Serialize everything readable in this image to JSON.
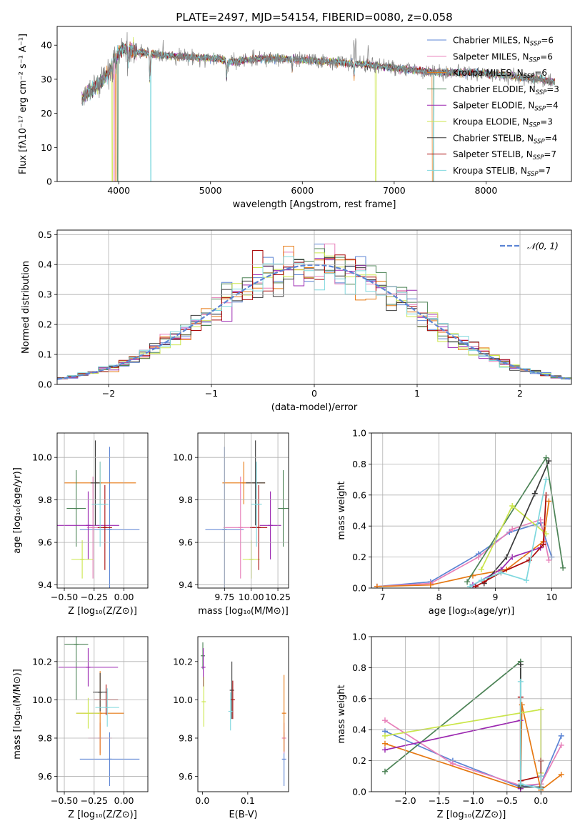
{
  "colors": {
    "Chabrier MILES": "#5b84d4",
    "Salpeter MILES": "#e77fb9",
    "Kroupa MILES": "#e67812",
    "Chabrier ELODIE": "#4c8356",
    "Salpeter ELODIE": "#9b27b0",
    "Kroupa ELODIE": "#cbe64a",
    "Chabrier STELIB": "#3a3a3a",
    "Salpeter STELIB": "#aa0a0a",
    "Kroupa STELIB": "#7fd8de",
    "model": "#808080"
  },
  "chart_data": [
    {
      "id": "spectrum",
      "type": "line",
      "title": "PLATE=2497, MJD=54154, FIBERID=0080, z=0.058",
      "xlabel": "wavelength [Angstrom, rest frame]",
      "ylabel": "Flux [fλ10⁻¹⁷ erg cm⁻² s⁻¹ A⁻¹]",
      "xlim": [
        3330,
        8930
      ],
      "ylim": [
        0,
        45.5
      ],
      "xticks": [
        "4000",
        "5000",
        "6000",
        "7000",
        "8000"
      ],
      "yticks": [
        "0",
        "10",
        "20",
        "30",
        "40"
      ],
      "grid": false,
      "legend_position": "top-right",
      "continuum": [
        [
          3600,
          24
        ],
        [
          3700,
          27
        ],
        [
          3800,
          29
        ],
        [
          3900,
          32
        ],
        [
          3960,
          37
        ],
        [
          4050,
          39
        ],
        [
          4200,
          38
        ],
        [
          4500,
          37
        ],
        [
          4800,
          36.5
        ],
        [
          5100,
          36
        ],
        [
          5200,
          35
        ],
        [
          5500,
          36
        ],
        [
          5800,
          36
        ],
        [
          6100,
          35.5
        ],
        [
          6400,
          35
        ],
        [
          6600,
          34.5
        ],
        [
          6800,
          34
        ],
        [
          7100,
          33
        ],
        [
          7300,
          32.5
        ],
        [
          7500,
          32
        ],
        [
          7800,
          32
        ],
        [
          8100,
          31.5
        ],
        [
          8400,
          30.5
        ],
        [
          8600,
          30
        ],
        [
          8800,
          29
        ]
      ],
      "observed_range": [
        3600,
        8750
      ],
      "absorption_features": [
        [
          3934,
          4
        ],
        [
          3969,
          4
        ],
        [
          4102,
          4
        ],
        [
          4340,
          8
        ],
        [
          5175,
          5
        ],
        [
          5890,
          3
        ],
        [
          6563,
          4
        ]
      ],
      "emission_features": [
        [
          6563,
          12
        ],
        [
          6583,
          8
        ],
        [
          6717,
          6
        ]
      ],
      "series": [
        {
          "name": "Chabrier MILES",
          "nssp": "6"
        },
        {
          "name": "Salpeter MILES",
          "nssp": "6"
        },
        {
          "name": "Kroupa MILES",
          "nssp": "6"
        },
        {
          "name": "Chabrier ELODIE",
          "nssp": "3"
        },
        {
          "name": "Salpeter ELODIE",
          "nssp": "4"
        },
        {
          "name": "Kroupa ELODIE",
          "nssp": "3"
        },
        {
          "name": "Chabrier STELIB",
          "nssp": "4"
        },
        {
          "name": "Salpeter STELIB",
          "nssp": "7"
        },
        {
          "name": "Kroupa STELIB",
          "nssp": "7"
        }
      ]
    },
    {
      "id": "residuals",
      "type": "line",
      "xlabel": "(data-model)/error",
      "ylabel": "Normed distribution",
      "xlim": [
        -2.5,
        2.5
      ],
      "ylim": [
        0,
        0.515
      ],
      "xticks": [
        -2,
        -1,
        0,
        1,
        2
      ],
      "yticks": [
        0.0,
        0.1,
        0.2,
        0.3,
        0.4,
        0.5
      ],
      "grid": true,
      "reference_curve": "N(0,1)",
      "legend_label": "𝒩(0, 1)",
      "histogram_bin_width": 0.1
    },
    {
      "id": "age-vs-Z",
      "type": "scatter",
      "xlabel": "Z [log₁₀(Z/Z⊙)]",
      "ylabel": "age  [log₁₀(age/yr)]",
      "xlim": [
        -0.56,
        0.2
      ],
      "ylim": [
        9.385,
        10.115
      ],
      "xticks": [
        -0.5,
        -0.25,
        0.0
      ],
      "yticks": [
        9.4,
        9.6,
        9.8,
        10.0
      ],
      "grid": true,
      "points": [
        {
          "name": "Chabrier MILES",
          "x": -0.12,
          "y": 9.66,
          "xerr": 0.25,
          "yerr": 0.39
        },
        {
          "name": "Salpeter MILES",
          "x": -0.26,
          "y": 9.67,
          "xerr": 0.05,
          "yerr": 0.24
        },
        {
          "name": "Kroupa MILES",
          "x": -0.2,
          "y": 9.88,
          "xerr": 0.3,
          "yerr": 0.1
        },
        {
          "name": "Chabrier ELODIE",
          "x": -0.4,
          "y": 9.76,
          "xerr": 0.08,
          "yerr": 0.18
        },
        {
          "name": "Salpeter ELODIE",
          "x": -0.3,
          "y": 9.68,
          "xerr": 0.26,
          "yerr": 0.16
        },
        {
          "name": "Kroupa ELODIE",
          "x": -0.35,
          "y": 9.52,
          "xerr": 0.09,
          "yerr": 0.09
        },
        {
          "name": "Chabrier STELIB",
          "x": -0.24,
          "y": 9.88,
          "xerr": 0.04,
          "yerr": 0.2
        },
        {
          "name": "Salpeter STELIB",
          "x": -0.16,
          "y": 9.67,
          "xerr": 0.06,
          "yerr": 0.2
        },
        {
          "name": "Kroupa STELIB",
          "x": -0.2,
          "y": 9.78,
          "xerr": 0.07,
          "yerr": 0.2
        }
      ]
    },
    {
      "id": "age-vs-mass",
      "type": "scatter",
      "xlabel": "mass [log₁₀(M/M⊙)]",
      "ylabel": "",
      "xlim": [
        9.5,
        10.35
      ],
      "ylim": [
        9.385,
        10.115
      ],
      "xticks": [
        "9.75",
        "10.00",
        "10.25"
      ],
      "yticks": [
        9.4,
        9.6,
        9.8,
        10.0
      ],
      "grid": true,
      "points": [
        {
          "name": "Chabrier MILES",
          "x": 9.75,
          "y": 9.66,
          "xerr": 0.18,
          "yerr": 0.39
        },
        {
          "name": "Salpeter MILES",
          "x": 9.9,
          "y": 9.67,
          "xerr": 0.16,
          "yerr": 0.24
        },
        {
          "name": "Kroupa MILES",
          "x": 9.93,
          "y": 9.88,
          "xerr": 0.2,
          "yerr": 0.1
        },
        {
          "name": "Chabrier ELODIE",
          "x": 10.3,
          "y": 9.76,
          "xerr": 0.05,
          "yerr": 0.18
        },
        {
          "name": "Salpeter ELODIE",
          "x": 10.18,
          "y": 9.68,
          "xerr": 0.1,
          "yerr": 0.16
        },
        {
          "name": "Kroupa ELODIE",
          "x": 10.0,
          "y": 9.52,
          "xerr": 0.08,
          "yerr": 0.09
        },
        {
          "name": "Chabrier STELIB",
          "x": 10.04,
          "y": 9.88,
          "xerr": 0.09,
          "yerr": 0.2
        },
        {
          "name": "Salpeter STELIB",
          "x": 10.07,
          "y": 9.67,
          "xerr": 0.08,
          "yerr": 0.2
        },
        {
          "name": "Kroupa STELIB",
          "x": 10.05,
          "y": 9.78,
          "xerr": 0.05,
          "yerr": 0.2
        }
      ]
    },
    {
      "id": "massweight-vs-age",
      "type": "line",
      "xlabel": "age  [log₁₀(age/yr)]",
      "ylabel": "mass weight",
      "xlim": [
        6.8,
        10.35
      ],
      "ylim": [
        0,
        1.0
      ],
      "xticks": [
        7,
        8,
        9,
        10
      ],
      "yticks": [
        0.0,
        0.2,
        0.4,
        0.6,
        0.8,
        1.0
      ],
      "grid": true,
      "series": [
        {
          "name": "Chabrier MILES",
          "x": [
            6.9,
            7.85,
            8.7,
            9.25,
            9.8,
            10.0
          ],
          "y": [
            0.01,
            0.04,
            0.22,
            0.36,
            0.42,
            0.2
          ]
        },
        {
          "name": "Salpeter MILES",
          "x": [
            6.9,
            7.85,
            8.7,
            9.3,
            9.8,
            9.95
          ],
          "y": [
            0.01,
            0.03,
            0.2,
            0.38,
            0.44,
            0.18
          ]
        },
        {
          "name": "Kroupa MILES",
          "x": [
            6.9,
            7.85,
            8.6,
            9.2,
            9.85,
            9.95
          ],
          "y": [
            0.01,
            0.02,
            0.08,
            0.12,
            0.3,
            0.56
          ]
        },
        {
          "name": "Chabrier ELODIE",
          "x": [
            8.5,
            9.9,
            10.2
          ],
          "y": [
            0.04,
            0.84,
            0.13
          ]
        },
        {
          "name": "Salpeter ELODIE",
          "x": [
            8.6,
            9.1,
            9.3,
            9.8
          ],
          "y": [
            0.02,
            0.12,
            0.2,
            0.26
          ]
        },
        {
          "name": "Kroupa ELODIE",
          "x": [
            8.75,
            9.3,
            9.9
          ],
          "y": [
            0.12,
            0.53,
            0.35
          ]
        },
        {
          "name": "Chabrier STELIB",
          "x": [
            8.8,
            9.2,
            9.7,
            9.95
          ],
          "y": [
            0.03,
            0.2,
            0.61,
            0.82
          ]
        },
        {
          "name": "Salpeter STELIB",
          "x": [
            8.65,
            8.8,
            9.1,
            9.6,
            9.85,
            9.9
          ],
          "y": [
            0.01,
            0.04,
            0.1,
            0.18,
            0.28,
            0.6
          ]
        },
        {
          "name": "Kroupa STELIB",
          "x": [
            8.55,
            8.75,
            9.1,
            9.55,
            9.9
          ],
          "y": [
            0.01,
            0.05,
            0.1,
            0.05,
            0.7
          ]
        }
      ]
    },
    {
      "id": "mass-vs-Z",
      "type": "scatter",
      "xlabel": "Z [log₁₀(Z/Z⊙)]",
      "ylabel": "mass [log₁₀(M/M⊙)]",
      "xlim": [
        -0.56,
        0.2
      ],
      "ylim": [
        9.52,
        10.33
      ],
      "xticks": [
        -0.5,
        -0.25,
        0.0
      ],
      "yticks": [
        9.6,
        9.8,
        10.0,
        10.2
      ],
      "grid": true,
      "points": [
        {
          "name": "Chabrier MILES",
          "x": -0.12,
          "y": 9.69,
          "xerr": 0.25,
          "yerr": 0.14
        },
        {
          "name": "Salpeter MILES",
          "x": -0.2,
          "y": 9.8,
          "xerr": 0.1,
          "yerr": 0.08
        },
        {
          "name": "Kroupa MILES",
          "x": -0.2,
          "y": 9.93,
          "xerr": 0.2,
          "yerr": 0.22
        },
        {
          "name": "Chabrier ELODIE",
          "x": -0.4,
          "y": 10.29,
          "xerr": 0.1,
          "yerr": 0.29
        },
        {
          "name": "Salpeter ELODIE",
          "x": -0.3,
          "y": 10.17,
          "xerr": 0.25,
          "yerr": 0.1
        },
        {
          "name": "Kroupa ELODIE",
          "x": -0.3,
          "y": 9.93,
          "xerr": 0.1,
          "yerr": 0.08
        },
        {
          "name": "Chabrier STELIB",
          "x": -0.2,
          "y": 10.04,
          "xerr": 0.06,
          "yerr": 0.1
        },
        {
          "name": "Salpeter STELIB",
          "x": -0.15,
          "y": 10.0,
          "xerr": 0.1,
          "yerr": 0.08
        },
        {
          "name": "Kroupa STELIB",
          "x": -0.14,
          "y": 9.96,
          "xerr": 0.1,
          "yerr": 0.1
        }
      ]
    },
    {
      "id": "mass-vs-ebv",
      "type": "scatter",
      "xlabel": "E(B-V)",
      "ylabel": "",
      "xlim": [
        -0.01,
        0.19
      ],
      "ylim": [
        9.52,
        10.33
      ],
      "xticks": [
        "0.0",
        "0.1"
      ],
      "yticks": [
        9.6,
        9.8,
        10.0,
        10.2
      ],
      "grid": false,
      "points": [
        {
          "name": "Chabrier MILES",
          "x": 0.18,
          "y": 9.69,
          "xerr": 0,
          "yerr": 0.14
        },
        {
          "name": "Salpeter MILES",
          "x": 0.18,
          "y": 9.8,
          "xerr": 0,
          "yerr": 0.08
        },
        {
          "name": "Kroupa MILES",
          "x": 0.18,
          "y": 9.93,
          "xerr": 0,
          "yerr": 0.2
        },
        {
          "name": "Chabrier ELODIE",
          "x": 0.001,
          "y": 10.23,
          "xerr": 0,
          "yerr": 0.07
        },
        {
          "name": "Salpeter ELODIE",
          "x": 0.002,
          "y": 10.17,
          "xerr": 0,
          "yerr": 0.1
        },
        {
          "name": "Kroupa ELODIE",
          "x": 0.003,
          "y": 9.99,
          "xerr": 0,
          "yerr": 0.13
        },
        {
          "name": "Chabrier STELIB",
          "x": 0.065,
          "y": 10.05,
          "xerr": 0,
          "yerr": 0.15
        },
        {
          "name": "Salpeter STELIB",
          "x": 0.067,
          "y": 10.0,
          "xerr": 0,
          "yerr": 0.1
        },
        {
          "name": "Kroupa STELIB",
          "x": 0.062,
          "y": 9.94,
          "xerr": 0,
          "yerr": 0.1
        }
      ]
    },
    {
      "id": "massweight-vs-Z",
      "type": "line",
      "xlabel": "Z [log₁₀(Z/Z⊙)]",
      "ylabel": "mass weight",
      "xlim": [
        -2.5,
        0.45
      ],
      "ylim": [
        0,
        1.0
      ],
      "xticks": [
        "−2.0",
        "−1.5",
        "−1.0",
        "−0.5",
        "0.0"
      ],
      "yticks": [
        0.0,
        0.2,
        0.4,
        0.6,
        0.8,
        1.0
      ],
      "grid": true,
      "series": [
        {
          "name": "Chabrier MILES",
          "x": [
            -2.3,
            -1.3,
            -0.3,
            0.0,
            0.3
          ],
          "y": [
            0.39,
            0.2,
            0.03,
            0.05,
            0.36
          ]
        },
        {
          "name": "Salpeter MILES",
          "x": [
            -2.3,
            -1.3,
            -0.3,
            0.0,
            0.3
          ],
          "y": [
            0.46,
            0.18,
            0.04,
            0.05,
            0.3
          ]
        },
        {
          "name": "Kroupa MILES",
          "x": [
            -2.3,
            -0.3,
            -0.28,
            0.0,
            0.3
          ],
          "y": [
            0.31,
            0.02,
            0.56,
            0.01,
            0.11
          ]
        },
        {
          "name": "Chabrier ELODIE",
          "x": [
            -2.3,
            -0.3,
            -0.3
          ],
          "y": [
            0.13,
            0.84,
            0.04
          ]
        },
        {
          "name": "Salpeter ELODIE",
          "x": [
            -2.3,
            -0.3,
            -0.3
          ],
          "y": [
            0.27,
            0.46,
            0.02
          ]
        },
        {
          "name": "Kroupa ELODIE",
          "x": [
            -2.3,
            0.0,
            0.0
          ],
          "y": [
            0.36,
            0.53,
            0.12
          ]
        },
        {
          "name": "Chabrier STELIB",
          "x": [
            -0.3,
            -0.3,
            0.0,
            0.0
          ],
          "y": [
            0.82,
            0.03,
            0.03,
            0.2
          ]
        },
        {
          "name": "Salpeter STELIB",
          "x": [
            -0.3,
            -0.3,
            0.0,
            0.0
          ],
          "y": [
            0.61,
            0.07,
            0.1,
            0.2
          ]
        },
        {
          "name": "Kroupa STELIB",
          "x": [
            -0.3,
            -0.3,
            0.0,
            0.0
          ],
          "y": [
            0.71,
            0.05,
            0.02,
            0.1
          ]
        }
      ]
    }
  ]
}
